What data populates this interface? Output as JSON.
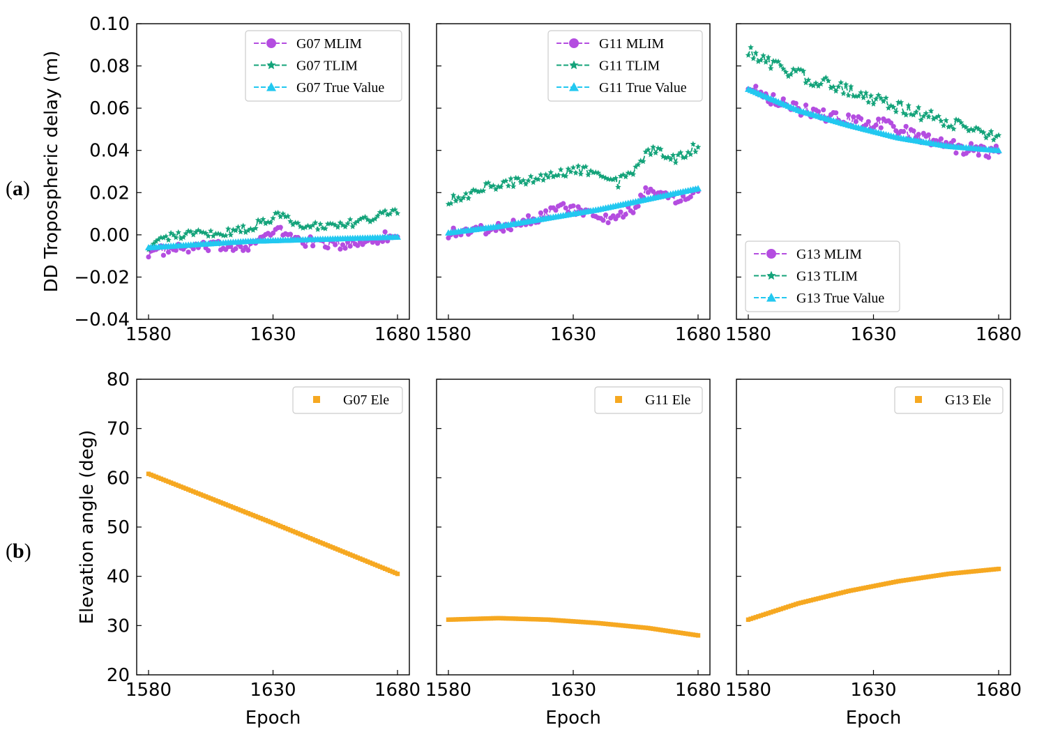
{
  "panel_labels": {
    "a_open": "(",
    "a_letter": "a",
    "a_close": ")",
    "b_open": "(",
    "b_letter": "b",
    "b_close": ")"
  },
  "colors": {
    "mlim": "#b44de0",
    "tlim": "#14a37a",
    "true": "#22c8f0",
    "ele": "#f6a821"
  },
  "chart_data": [
    {
      "type": "line",
      "row": "a",
      "satellite": "G07",
      "xlabel": "",
      "ylabel": "DD Tropospheric delay (m)",
      "xlim": [
        1580,
        1680
      ],
      "ylim": [
        -0.04,
        0.1
      ],
      "xticks": [
        "1580",
        "1630",
        "1680"
      ],
      "yticks": [
        "0.10",
        "0.08",
        "0.06",
        "0.04",
        "0.02",
        "0.00",
        "−0.02",
        "−0.04"
      ],
      "legend": "top-right",
      "series": [
        {
          "name": "G07 MLIM",
          "key": "mlim",
          "marker": "circle",
          "knots": [
            [
              1580,
              -0.008
            ],
            [
              1600,
              -0.006
            ],
            [
              1620,
              -0.005
            ],
            [
              1632,
              0.002
            ],
            [
              1642,
              -0.003
            ],
            [
              1660,
              -0.005
            ],
            [
              1670,
              -0.002
            ],
            [
              1680,
              0.0
            ]
          ],
          "noise": 0.0025
        },
        {
          "name": "G07 TLIM",
          "key": "tlim",
          "marker": "star",
          "knots": [
            [
              1580,
              -0.005
            ],
            [
              1590,
              0.0
            ],
            [
              1610,
              0.001
            ],
            [
              1620,
              0.003
            ],
            [
              1632,
              0.009
            ],
            [
              1645,
              0.004
            ],
            [
              1660,
              0.005
            ],
            [
              1670,
              0.008
            ],
            [
              1680,
              0.011
            ]
          ],
          "noise": 0.002
        },
        {
          "name": "G07 True Value",
          "key": "true",
          "marker": "triangle",
          "knots": [
            [
              1580,
              -0.006
            ],
            [
              1620,
              -0.003
            ],
            [
              1650,
              -0.002
            ],
            [
              1680,
              -0.001
            ]
          ],
          "noise": 0
        }
      ]
    },
    {
      "type": "line",
      "row": "a",
      "satellite": "G11",
      "xlabel": "",
      "ylabel": "",
      "xlim": [
        1580,
        1680
      ],
      "ylim": [
        -0.04,
        0.1
      ],
      "xticks": [
        "1580",
        "1630",
        "1680"
      ],
      "legend": "top-right",
      "series": [
        {
          "name": "G11 MLIM",
          "key": "mlim",
          "marker": "circle",
          "knots": [
            [
              1580,
              0.001
            ],
            [
              1590,
              0.002
            ],
            [
              1600,
              0.003
            ],
            [
              1615,
              0.008
            ],
            [
              1625,
              0.013
            ],
            [
              1635,
              0.011
            ],
            [
              1645,
              0.006
            ],
            [
              1655,
              0.013
            ],
            [
              1660,
              0.022
            ],
            [
              1670,
              0.017
            ],
            [
              1680,
              0.021
            ]
          ],
          "noise": 0.0025
        },
        {
          "name": "G11 TLIM",
          "key": "tlim",
          "marker": "star",
          "knots": [
            [
              1580,
              0.017
            ],
            [
              1595,
              0.022
            ],
            [
              1610,
              0.026
            ],
            [
              1625,
              0.03
            ],
            [
              1640,
              0.031
            ],
            [
              1648,
              0.025
            ],
            [
              1655,
              0.032
            ],
            [
              1662,
              0.041
            ],
            [
              1670,
              0.036
            ],
            [
              1680,
              0.042
            ]
          ],
          "noise": 0.0025
        },
        {
          "name": "G11 True Value",
          "key": "true",
          "marker": "triangle",
          "knots": [
            [
              1580,
              0.001
            ],
            [
              1600,
              0.004
            ],
            [
              1620,
              0.008
            ],
            [
              1640,
              0.012
            ],
            [
              1660,
              0.017
            ],
            [
              1680,
              0.022
            ]
          ],
          "noise": 0
        }
      ]
    },
    {
      "type": "line",
      "row": "a",
      "satellite": "G13",
      "xlabel": "",
      "ylabel": "",
      "xlim": [
        1580,
        1680
      ],
      "ylim": [
        -0.04,
        0.1
      ],
      "xticks": [
        "1580",
        "1630",
        "1680"
      ],
      "legend": "bottom-left",
      "series": [
        {
          "name": "G13 MLIM",
          "key": "mlim",
          "marker": "circle",
          "knots": [
            [
              1580,
              0.072
            ],
            [
              1590,
              0.064
            ],
            [
              1605,
              0.058
            ],
            [
              1620,
              0.054
            ],
            [
              1635,
              0.052
            ],
            [
              1650,
              0.046
            ],
            [
              1665,
              0.041
            ],
            [
              1680,
              0.039
            ]
          ],
          "noise": 0.003
        },
        {
          "name": "G13 TLIM",
          "key": "tlim",
          "marker": "star",
          "knots": [
            [
              1580,
              0.088
            ],
            [
              1590,
              0.08
            ],
            [
              1605,
              0.074
            ],
            [
              1620,
              0.068
            ],
            [
              1635,
              0.062
            ],
            [
              1650,
              0.057
            ],
            [
              1665,
              0.051
            ],
            [
              1680,
              0.047
            ]
          ],
          "noise": 0.003
        },
        {
          "name": "G13 True Value",
          "key": "true",
          "marker": "triangle",
          "knots": [
            [
              1580,
              0.069
            ],
            [
              1590,
              0.064
            ],
            [
              1600,
              0.059
            ],
            [
              1620,
              0.052
            ],
            [
              1640,
              0.046
            ],
            [
              1660,
              0.042
            ],
            [
              1680,
              0.04
            ]
          ],
          "noise": 0
        }
      ]
    },
    {
      "type": "scatter",
      "row": "b",
      "satellite": "G07",
      "xlabel": "Epoch",
      "ylabel": "Elevation angle (deg)",
      "xlim": [
        1580,
        1680
      ],
      "ylim": [
        20,
        80
      ],
      "xticks": [
        "1580",
        "1630",
        "1680"
      ],
      "yticks": [
        "80",
        "70",
        "60",
        "50",
        "40",
        "30",
        "20"
      ],
      "legend": "top-right",
      "series": [
        {
          "name": "G07 Ele",
          "key": "ele",
          "marker": "square",
          "knots": [
            [
              1580,
              60.8
            ],
            [
              1630,
              50.8
            ],
            [
              1680,
              40.5
            ]
          ],
          "noise": 0
        }
      ]
    },
    {
      "type": "scatter",
      "row": "b",
      "satellite": "G11",
      "xlabel": "Epoch",
      "ylabel": "",
      "xlim": [
        1580,
        1680
      ],
      "ylim": [
        20,
        80
      ],
      "xticks": [
        "1580",
        "1630",
        "1680"
      ],
      "legend": "top-right",
      "series": [
        {
          "name": "G11 Ele",
          "key": "ele",
          "marker": "square",
          "knots": [
            [
              1580,
              31.2
            ],
            [
              1600,
              31.5
            ],
            [
              1620,
              31.2
            ],
            [
              1640,
              30.5
            ],
            [
              1660,
              29.5
            ],
            [
              1680,
              28.0
            ]
          ],
          "noise": 0
        }
      ]
    },
    {
      "type": "scatter",
      "row": "b",
      "satellite": "G13",
      "xlabel": "Epoch",
      "ylabel": "",
      "xlim": [
        1580,
        1680
      ],
      "ylim": [
        20,
        80
      ],
      "xticks": [
        "1580",
        "1630",
        "1680"
      ],
      "legend": "top-right",
      "series": [
        {
          "name": "G13 Ele",
          "key": "ele",
          "marker": "square",
          "knots": [
            [
              1580,
              31.2
            ],
            [
              1600,
              34.5
            ],
            [
              1620,
              37.0
            ],
            [
              1640,
              39.0
            ],
            [
              1660,
              40.5
            ],
            [
              1680,
              41.5
            ]
          ],
          "noise": 0
        }
      ]
    }
  ]
}
